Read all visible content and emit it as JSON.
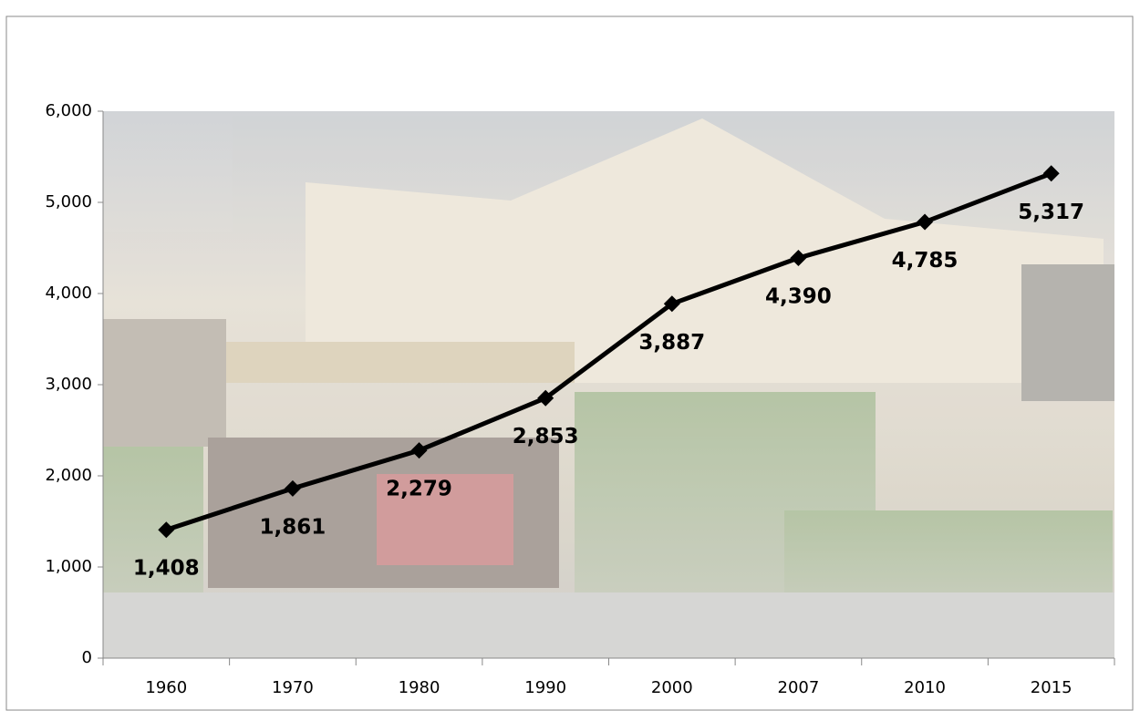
{
  "chart_data": {
    "type": "line",
    "categories": [
      "1960",
      "1970",
      "1980",
      "1990",
      "2000",
      "2007",
      "2010",
      "2015"
    ],
    "values": [
      1408,
      1861,
      2279,
      2853,
      3887,
      4390,
      4785,
      5317
    ],
    "value_labels": [
      "1,408",
      "1,861",
      "2,279",
      "2,853",
      "3,887",
      "4,390",
      "4,785",
      "5,317"
    ],
    "color": "#000000",
    "marker": "diamond",
    "ylim": [
      0,
      6000
    ],
    "yticks": [
      0,
      {
        "value": 1000,
        "label": "1,000"
      },
      {
        "value": 2000,
        "label": "2,000"
      },
      {
        "value": 3000,
        "label": "3,000"
      },
      {
        "value": 4000,
        "label": "4,000"
      },
      {
        "value": 5000,
        "label": "5,000"
      },
      {
        "value": 6000,
        "label": "6,000"
      }
    ],
    "grid": false
  }
}
